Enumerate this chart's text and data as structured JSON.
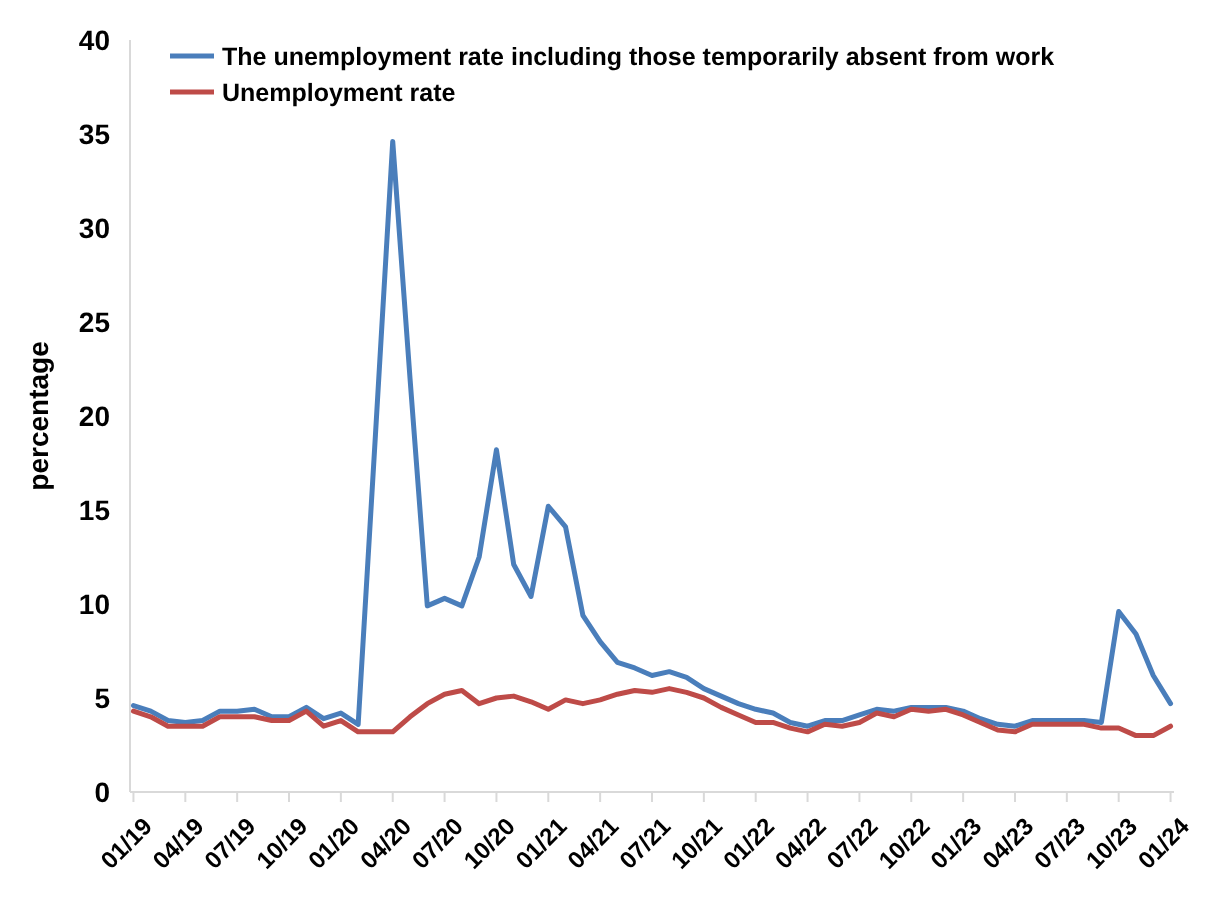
{
  "chart_data": {
    "type": "line",
    "ylabel": "percentage",
    "categories": [
      "01/19",
      null,
      null,
      "04/19",
      null,
      null,
      "07/19",
      null,
      null,
      "10/19",
      null,
      null,
      "01/20",
      null,
      null,
      "04/20",
      null,
      null,
      "07/20",
      null,
      null,
      "10/20",
      null,
      null,
      "01/21",
      null,
      null,
      "04/21",
      null,
      null,
      "07/21",
      null,
      null,
      "10/21",
      null,
      null,
      "01/22",
      null,
      null,
      "04/22",
      null,
      null,
      "07/22",
      null,
      null,
      "10/22",
      null,
      null,
      "01/23",
      null,
      null,
      "04/23",
      null,
      null,
      "07/23",
      null,
      null,
      "10/23",
      null,
      null,
      "01/24"
    ],
    "series": [
      {
        "name": "The unemployment rate including those temporarily absent from work",
        "color": "#4a7ebb",
        "values": [
          4.6,
          4.3,
          3.8,
          3.7,
          3.8,
          4.3,
          4.3,
          4.4,
          4.0,
          4.0,
          4.5,
          3.9,
          4.2,
          3.6,
          19,
          34.6,
          22,
          9.9,
          10.3,
          9.9,
          12.5,
          18.2,
          12.1,
          10.4,
          15.2,
          14.1,
          9.4,
          8.0,
          6.9,
          6.6,
          6.2,
          6.4,
          6.1,
          5.5,
          5.1,
          4.7,
          4.4,
          4.2,
          3.7,
          3.5,
          3.8,
          3.8,
          4.1,
          4.4,
          4.3,
          4.5,
          4.5,
          4.5,
          4.3,
          3.9,
          3.6,
          3.5,
          3.8,
          3.8,
          3.8,
          3.8,
          3.7,
          9.6,
          8.4,
          6.2,
          4.7
        ]
      },
      {
        "name": "Unemployment rate",
        "color": "#be4b48",
        "values": [
          4.3,
          4.0,
          3.5,
          3.5,
          3.5,
          4.0,
          4.0,
          4.0,
          3.8,
          3.8,
          4.3,
          3.5,
          3.8,
          3.2,
          3.2,
          3.2,
          4.0,
          4.7,
          5.2,
          5.4,
          4.7,
          5.0,
          5.1,
          4.8,
          4.4,
          4.9,
          4.7,
          4.9,
          5.2,
          5.4,
          5.3,
          5.5,
          5.3,
          5.0,
          4.5,
          4.1,
          3.7,
          3.7,
          3.4,
          3.2,
          3.6,
          3.5,
          3.7,
          4.2,
          4.0,
          4.4,
          4.3,
          4.4,
          4.1,
          3.7,
          3.3,
          3.2,
          3.6,
          3.6,
          3.6,
          3.6,
          3.4,
          3.4,
          3.0,
          3.0,
          3.5
        ]
      }
    ],
    "ylim": [
      0,
      40
    ],
    "yticks": [
      0,
      5,
      10,
      15,
      20,
      25,
      30,
      35,
      40
    ],
    "grid": false,
    "legend": "top left",
    "line_style": "solid",
    "marker": "none"
  }
}
